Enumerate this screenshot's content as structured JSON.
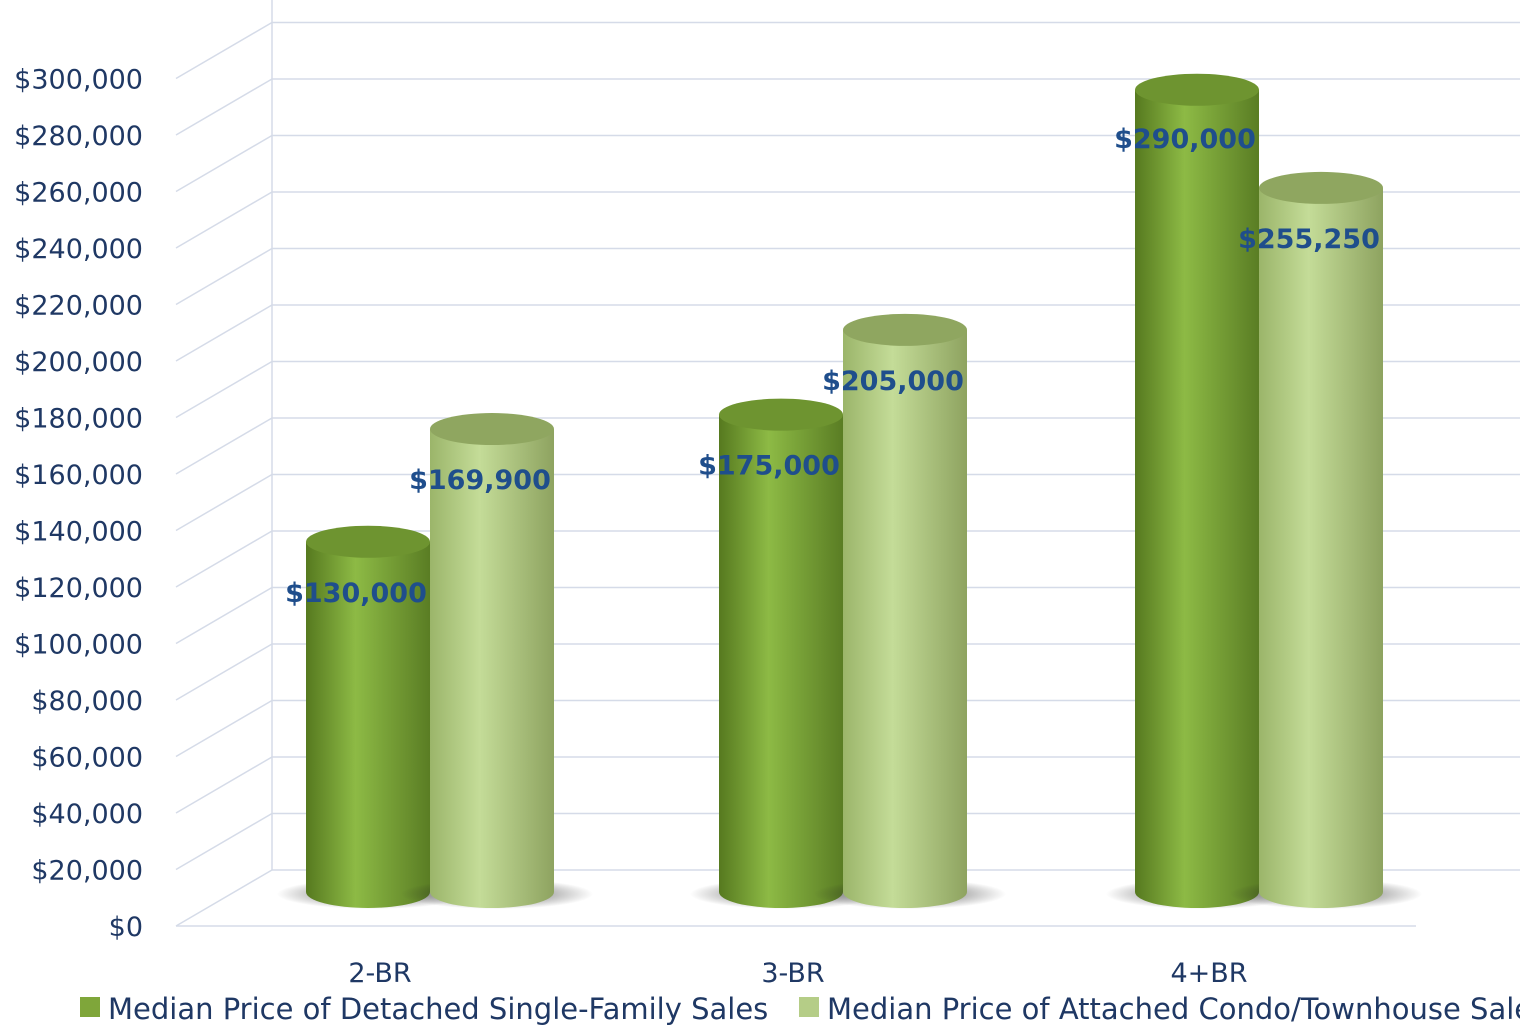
{
  "chart_data": {
    "type": "bar",
    "style": "3d-cylinder",
    "categories": [
      "2-BR",
      "3-BR",
      "4+BR"
    ],
    "series": [
      {
        "name": "Median Price of Detached Single-Family Sales",
        "values": [
          130000,
          175000,
          290000
        ],
        "labels": [
          "$130,000",
          "$175,000",
          "$290,000"
        ],
        "color": "#7fa63a"
      },
      {
        "name": "Median Price of Attached Condo/Townhouse Sales",
        "values": [
          169900,
          205000,
          255250
        ],
        "labels": [
          "$169,900",
          "$205,000",
          "$255,250"
        ],
        "color": "#b5cd87"
      }
    ],
    "yticks": [
      "$0",
      "$20,000",
      "$40,000",
      "$60,000",
      "$80,000",
      "$100,000",
      "$120,000",
      "$140,000",
      "$160,000",
      "$180,000",
      "$200,000",
      "$220,000",
      "$240,000",
      "$260,000",
      "$280,000",
      "$300,000"
    ],
    "ylim": [
      0,
      320000
    ],
    "grid": true,
    "legend_position": "bottom",
    "title": "",
    "xlabel": "",
    "ylabel": ""
  }
}
